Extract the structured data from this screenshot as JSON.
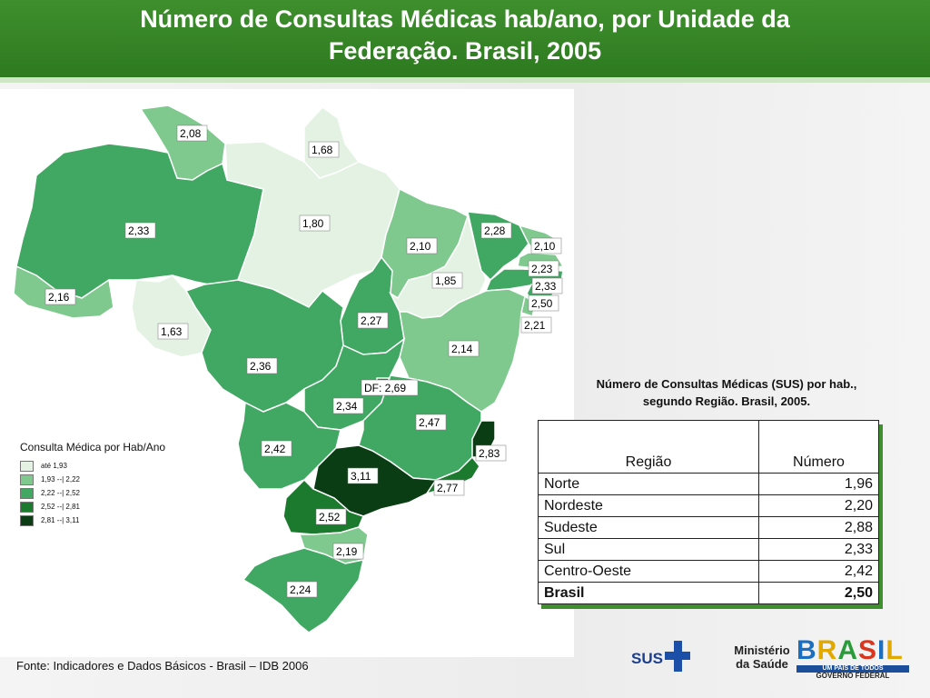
{
  "header": {
    "title_line1": "Número de Consultas Médicas hab/ano, por Unidade da",
    "title_line2": "Federação. Brasil, 2005"
  },
  "colors": {
    "header_green": "#3f8f2e",
    "class_1": "#e4f2e4",
    "class_2": "#7fc98f",
    "class_3": "#41a863",
    "class_4": "#1c7a2e",
    "class_5": "#0b3d14"
  },
  "map": {
    "labels": {
      "roraima": "2,08",
      "amapa": "1,68",
      "amazonas": "2,33",
      "para": "1,80",
      "maranhao": "2,10",
      "ceara": "2,28",
      "rio_grande_do_norte": "2,10",
      "paraiba": "2,23",
      "pernambuco": "2,33",
      "alagoas": "2,50",
      "sergipe": "2,21",
      "piaui": "1,85",
      "acre": "2,16",
      "rondonia": "1,63",
      "tocantins": "2,27",
      "bahia": "2,14",
      "mato_grosso": "2,36",
      "distrito_federal": "DF: 2,69",
      "goias": "2,34",
      "minas_gerais": "2,47",
      "mato_grosso_do_sul": "2,42",
      "espirito_santo": "2,83",
      "sao_paulo": "3,11",
      "rio_de_janeiro": "2,77",
      "parana": "2,52",
      "santa_catarina": "2,19",
      "rio_grande_do_sul": "2,24"
    }
  },
  "legend": {
    "title": "Consulta Médica por Hab/Ano",
    "items": [
      {
        "label": "até 1,93",
        "color": "#e4f2e4"
      },
      {
        "label": "1,93 --| 2,22",
        "color": "#7fc98f"
      },
      {
        "label": "2,22 --| 2,52",
        "color": "#41a863"
      },
      {
        "label": "2,52 --| 2,81",
        "color": "#1c7a2e"
      },
      {
        "label": "2,81 --| 3,11",
        "color": "#0b3d14"
      }
    ]
  },
  "table": {
    "caption_line1": "Número de Consultas Médicas (SUS) por hab.,",
    "caption_line2": "segundo Região. Brasil, 2005.",
    "col_region": "Região",
    "col_number": "Número",
    "rows": [
      {
        "region": "Norte",
        "value": "1,96"
      },
      {
        "region": "Nordeste",
        "value": "2,20"
      },
      {
        "region": "Sudeste",
        "value": "2,88"
      },
      {
        "region": "Sul",
        "value": "2,33"
      },
      {
        "region": "Centro-Oeste",
        "value": "2,42"
      },
      {
        "region": "Brasil",
        "value": "2,50"
      }
    ]
  },
  "footer": {
    "source": "Fonte: Indicadores e Dados Básicos - Brasil – IDB 2006",
    "sus_text": "SUS",
    "ministerio_line1": "Ministério",
    "ministerio_line2": "da Saúde",
    "brasil_letters": [
      "B",
      "R",
      "A",
      "S",
      "I",
      "L"
    ],
    "brasil_colors": [
      "#1b6fc0",
      "#e0a800",
      "#2a9a3a",
      "#d8361f",
      "#1b6fc0",
      "#e0a800"
    ],
    "brasil_tagline": "UM PAÍS DE TODOS",
    "governo": "GOVERNO FEDERAL"
  }
}
